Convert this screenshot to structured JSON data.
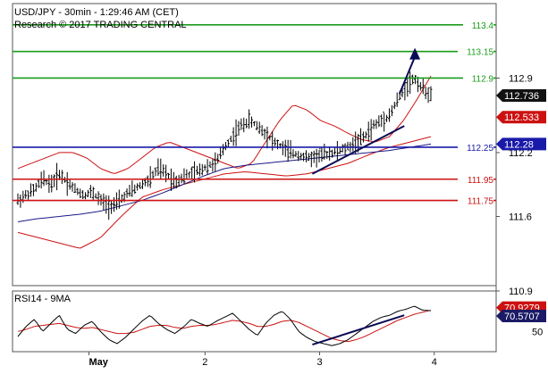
{
  "header": {
    "line1": "USD/JPY - 30min - 1:29:46 AM (CET)",
    "line2": "Research © 2017 TRADING CENTRAL"
  },
  "colors": {
    "background": "#ffffff",
    "resistance": "#1a9c1a",
    "pivot": "#1a1aaa",
    "support": "#cc1111",
    "candles": "#000000",
    "bollinger": "#cc1111",
    "moving_average": "#1a1a88",
    "trendline": "#0a0a55",
    "arrow": "#0a0a55",
    "rsi_line": "#000000",
    "rsi_ma": "#cc1111"
  },
  "chart_data": [
    {
      "type": "candlestick",
      "title": "USD/JPY - 30min - 1:29:46 AM (CET)",
      "x_tick_labels": [
        "May",
        "2",
        "3",
        "4"
      ],
      "y_tick_labels": [
        "112.9",
        "112.2",
        "111.6",
        "110.9"
      ],
      "ylim": [
        110.95,
        113.6
      ],
      "price_path": [
        111.75,
        111.8,
        111.85,
        111.95,
        111.9,
        112.0,
        111.92,
        111.85,
        111.8,
        111.83,
        111.75,
        111.7,
        111.72,
        111.8,
        111.85,
        111.9,
        111.95,
        112.05,
        112.0,
        111.93,
        111.97,
        112.0,
        112.03,
        112.08,
        112.1,
        112.25,
        112.35,
        112.45,
        112.5,
        112.45,
        112.38,
        112.3,
        112.25,
        112.2,
        112.18,
        112.15,
        112.16,
        112.18,
        112.2,
        112.22,
        112.25,
        112.3,
        112.35,
        112.45,
        112.5,
        112.55,
        112.7,
        112.82,
        112.9,
        112.8,
        112.74
      ],
      "bollinger_upper": [
        112.05,
        112.1,
        112.15,
        112.2,
        112.2,
        112.15,
        112.05,
        112.0,
        112.05,
        112.15,
        112.25,
        112.3,
        112.25,
        112.2,
        112.15,
        112.1,
        112.05,
        112.1,
        112.3,
        112.5,
        112.65,
        112.6,
        112.5,
        112.45,
        112.38,
        112.32,
        112.3,
        112.35,
        112.5,
        112.7,
        112.92
      ],
      "bollinger_lower": [
        111.45,
        111.4,
        111.35,
        111.3,
        111.4,
        111.6,
        111.78,
        111.85,
        111.9,
        111.95,
        112.0,
        112.02,
        112.0,
        111.98,
        112.0,
        112.05,
        112.1,
        112.18,
        112.25,
        112.3,
        112.35
      ],
      "moving_average": [
        111.55,
        111.58,
        111.6,
        111.62,
        111.65,
        111.7,
        111.75,
        111.82,
        111.9,
        111.98,
        112.05,
        112.08,
        112.1,
        112.12,
        112.14,
        112.16,
        112.18,
        112.2,
        112.22,
        112.25,
        112.28
      ],
      "levels": [
        {
          "label": "113.4",
          "value": 113.4,
          "kind": "resistance"
        },
        {
          "label": "113.15",
          "value": 113.15,
          "kind": "resistance"
        },
        {
          "label": "112.9",
          "value": 112.9,
          "kind": "resistance"
        },
        {
          "label": "112.25",
          "value": 112.25,
          "kind": "pivot"
        },
        {
          "label": "111.95",
          "value": 111.95,
          "kind": "support"
        },
        {
          "label": "111.75",
          "value": 111.75,
          "kind": "support"
        }
      ],
      "price_badges": [
        {
          "label": "112.736",
          "value": 112.736,
          "style": "black"
        },
        {
          "label": "112.533",
          "value": 112.533,
          "style": "red"
        },
        {
          "label": "112.28",
          "value": 112.28,
          "style": "blue"
        }
      ],
      "trendline": [
        {
          "x": 0.62,
          "y": 112.0
        },
        {
          "x": 0.81,
          "y": 112.45
        }
      ],
      "arrow_path": [
        {
          "x": 0.8,
          "y": 112.75
        },
        {
          "x": 0.832,
          "y": 113.15
        }
      ]
    },
    {
      "type": "line",
      "title": "RSI14 - 9MA",
      "y_tick_labels": [
        "50"
      ],
      "ylim": [
        30,
        90
      ],
      "series": [
        {
          "name": "RSI14",
          "values": [
            45,
            55,
            62,
            50,
            58,
            66,
            52,
            48,
            56,
            60,
            50,
            42,
            38,
            44,
            52,
            60,
            66,
            58,
            52,
            48,
            54,
            62,
            58,
            55,
            60,
            64,
            68,
            60,
            52,
            46,
            58,
            66,
            70,
            62,
            50,
            44,
            40,
            38,
            36,
            38,
            42,
            48,
            54,
            60,
            64,
            66,
            70,
            72,
            75,
            71,
            70.57
          ]
        },
        {
          "name": "9MA",
          "values": [
            50,
            52,
            55,
            56,
            57,
            58,
            56,
            54,
            53,
            54,
            52,
            50,
            48,
            48,
            49,
            52,
            55,
            56,
            56,
            54,
            53,
            55,
            56,
            56,
            57,
            59,
            61,
            60,
            58,
            55,
            55,
            57,
            60,
            61,
            59,
            55,
            51,
            47,
            43,
            41,
            40,
            42,
            45,
            49,
            53,
            57,
            61,
            64,
            67,
            69,
            70.93
          ]
        }
      ],
      "value_badges": [
        {
          "label": "70.9279",
          "value": 70.9279,
          "style": "red"
        },
        {
          "label": "70.5707",
          "value": 70.5707,
          "style": "navy"
        }
      ],
      "trendline": [
        {
          "x": 0.62,
          "y": 37
        },
        {
          "x": 0.81,
          "y": 66
        }
      ]
    }
  ]
}
